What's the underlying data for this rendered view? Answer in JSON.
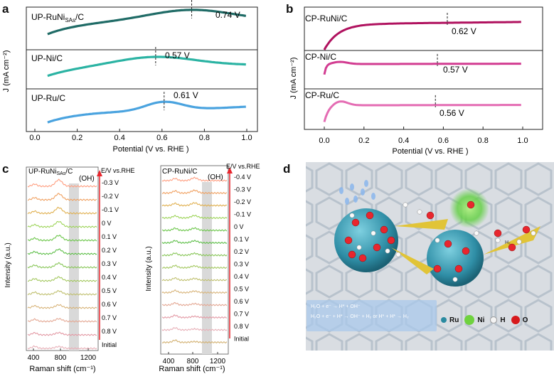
{
  "panels": {
    "a": "a",
    "b": "b",
    "c": "c",
    "d": "d"
  },
  "colors": {
    "runi_a": "#1f6b66",
    "ni_a": "#2bb3a3",
    "ru_a": "#4aa3df",
    "cp_runi": "#b0125f",
    "cp_ni": "#d23c91",
    "cp_ru": "#e46cb3",
    "arrow": "#e8262e"
  },
  "panel_a": {
    "curves": [
      {
        "label_main": "UP-RuNi",
        "label_sub": "SAs",
        "label_tail": "/C",
        "peak_label": "0.74 V"
      },
      {
        "label_main": "UP-Ni/C",
        "label_sub": "",
        "label_tail": "",
        "peak_label": "0.57 V"
      },
      {
        "label_main": "UP-Ru/C",
        "label_sub": "",
        "label_tail": "",
        "peak_label": "0.61 V"
      }
    ],
    "ylabel": "J (mA cm⁻²)",
    "xlabel": "Potential (V vs. RHE )",
    "xticks": [
      "0.0",
      "0.2",
      "0.4",
      "0.6",
      "0.8",
      "1.0"
    ]
  },
  "panel_b": {
    "curves": [
      {
        "label": "CP-RuNi/C",
        "peak_label": "0.62 V"
      },
      {
        "label": "CP-Ni/C",
        "peak_label": "0.57 V"
      },
      {
        "label": "CP-Ru/C",
        "peak_label": "0.56 V"
      }
    ],
    "ylabel": "J (mA cm⁻²)",
    "xlabel": "Potential (V vs. RHE )",
    "xticks": [
      "0.0",
      "0.2",
      "0.4",
      "0.6",
      "0.8",
      "1.0"
    ]
  },
  "panel_c_left": {
    "title_main": "UP-RuNi",
    "title_sub": "SAs",
    "title_tail": "/C",
    "oh": "(OH)",
    "ev_header": "E/V vs.RHE",
    "levels": [
      "-0.3 V",
      "-0.2 V",
      "-0.1 V",
      "0 V",
      "0.1 V",
      "0.2 V",
      "0.3 V",
      "0.4 V",
      "0.5 V",
      "0.6 V",
      "0.7 V",
      "0.8 V",
      "Initial"
    ],
    "ylabel": "Intensity (a.u.)",
    "xlabel": "Raman shift (cm⁻¹)",
    "xticks": [
      "400",
      "800",
      "1200"
    ]
  },
  "panel_c_right": {
    "title": "CP-RuNi/C",
    "oh": "(OH)",
    "ev_header": "E/V vs.RHE",
    "levels": [
      "-0.4 V",
      "-0.3 V",
      "-0.2 V",
      "-0.1 V",
      "0 V",
      "0.1 V",
      "0.2 V",
      "0.3 V",
      "0.4 V",
      "0.5 V",
      "0.6 V",
      "0.7 V",
      "0.8 V",
      "Initial"
    ],
    "ylabel": "Intensity (a.u.)",
    "xlabel": "Raman shift (cm⁻¹)",
    "xticks": [
      "400",
      "800",
      "1200"
    ]
  },
  "panel_d": {
    "eq1": "H₂O + e⁻ → H* + OH⁻",
    "eq2": "H₂O + e⁻ + H* → OH⁻ + H₂ or H* + H* → H₂",
    "legend": [
      {
        "symbol": "Ru",
        "color": "#2a8aa0"
      },
      {
        "symbol": "Ni",
        "color": "#6fd23f"
      },
      {
        "symbol": "H",
        "color": "#f4f4f4"
      },
      {
        "symbol": "O",
        "color": "#d7191c"
      }
    ]
  }
}
